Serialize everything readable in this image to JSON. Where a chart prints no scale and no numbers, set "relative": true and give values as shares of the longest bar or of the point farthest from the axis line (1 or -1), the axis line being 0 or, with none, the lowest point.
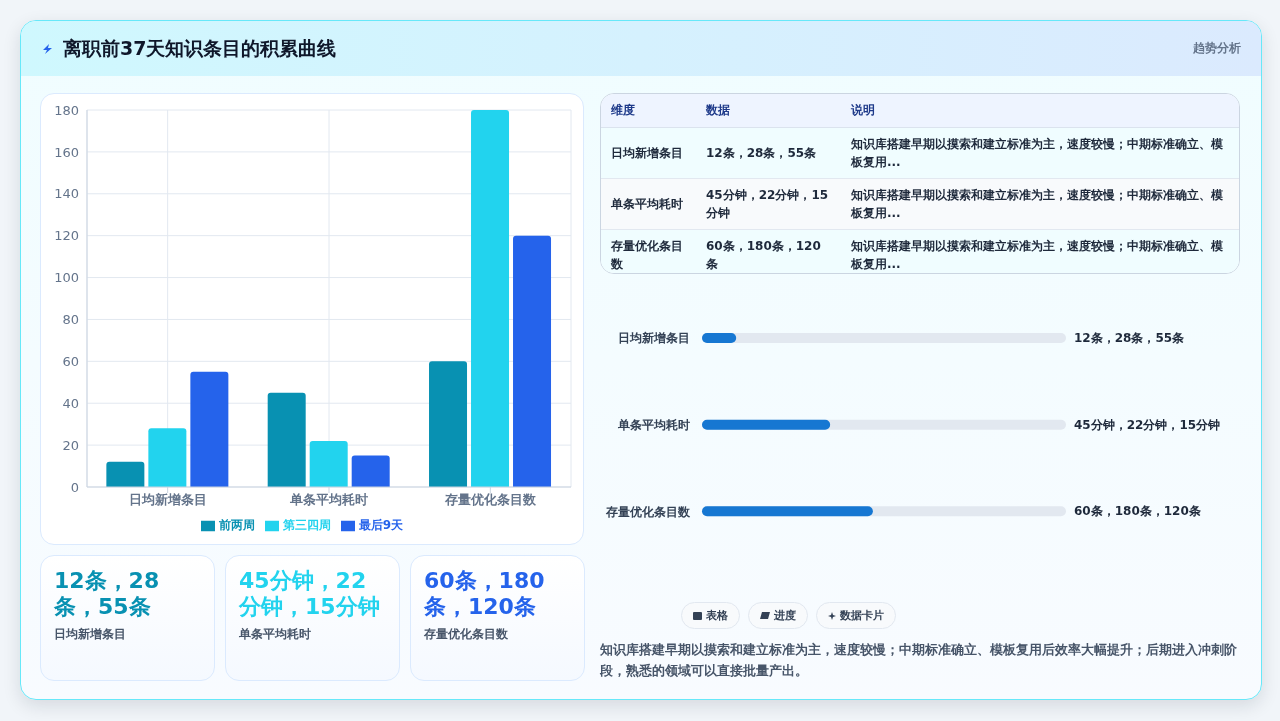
{
  "chart_data": [
    {
      "type": "other",
      "title": "离职前37天知识条目的积累曲线",
      "annotations": [
        "趋势分析"
      ]
    },
    {
      "type": "bar",
      "categories": [
        "日均新增条目",
        "单条平均耗时",
        "存量优化条目数"
      ],
      "series": [
        {
          "name": "前两周",
          "color": "#0891b2",
          "values": [
            12,
            45,
            60
          ]
        },
        {
          "name": "第三四周",
          "color": "#22d3ee",
          "values": [
            28,
            22,
            180
          ]
        },
        {
          "name": "最后9天",
          "color": "#2563eb",
          "values": [
            55,
            15,
            120
          ]
        }
      ],
      "ylim": [
        0,
        180
      ],
      "yticks": [
        0,
        20,
        40,
        60,
        80,
        100,
        120,
        140,
        160,
        180
      ],
      "grid": true,
      "legend": "bottom"
    },
    {
      "type": "other",
      "categories": [
        "维度",
        "数据",
        "说明"
      ],
      "annotations": [
        "日均新增条目",
        "12条，28条，55条",
        "知识库搭建早期以摸索和建立标准为主，速度较慢；中期标准确立、模板复用...",
        "单条平均耗时",
        "45分钟，22分钟，15分钟",
        "知识库搭建早期以摸索和建立标准为主，速度较慢；中期标准确立、模板复用...",
        "存量优化条目数",
        "60条，180条，120条",
        "知识库搭建早期以摸索和建立标准为主，速度较慢；中期标准确立、模板复用..."
      ]
    },
    {
      "type": "bar",
      "orientation": "horizontal",
      "relative": true,
      "categories": [
        "日均新增条目",
        "单条平均耗时",
        "存量优化条目数"
      ],
      "values": [
        0.2,
        0.75,
        1
      ],
      "color": "#1677d2",
      "annotations": [
        "12条，28条，55条",
        "45分钟，22分钟，15分钟",
        "60条，180条，120条"
      ]
    },
    {
      "type": "other",
      "annotations": [
        "12条，28条，55条",
        "日均新增条目",
        "45分钟，22分钟，15分钟",
        "单条平均耗时",
        "60条，180条，120条",
        "存量优化条目数"
      ],
      "colors": [
        "#0891b2",
        "#22d3ee",
        "#2563eb"
      ]
    },
    {
      "type": "other",
      "annotations": [
        "表格",
        "进度",
        "数据卡片",
        "知识库搭建早期以摸索和建立标准为主，速度较慢；中期标准确立、模板复用后效率大幅提升；后期进入冲刺阶段，熟悉的领域可以直接批量产出。"
      ]
    }
  ]
}
